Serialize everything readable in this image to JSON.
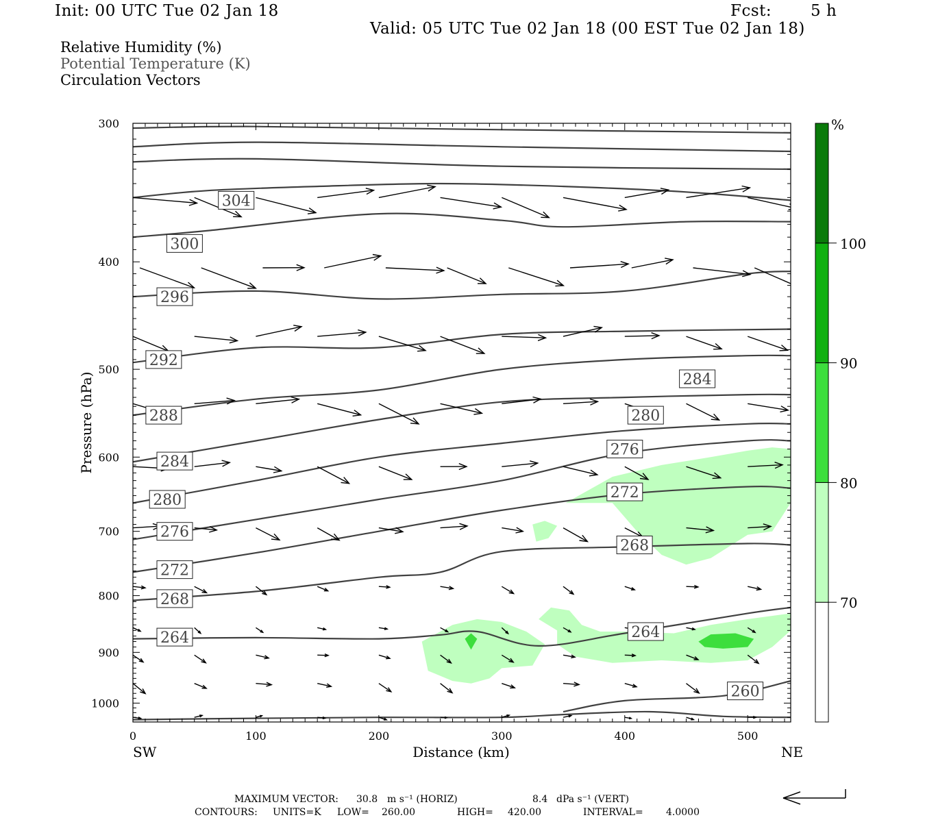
{
  "header": {
    "init": "Init: 00 UTC Tue 02 Jan 18",
    "fcst_label": "Fcst:",
    "fcst_value": "5 h",
    "valid": "Valid: 05 UTC Tue 02 Jan 18 (00 EST Tue 02 Jan 18)"
  },
  "fields": {
    "rh": "Relative Humidity (%)",
    "theta": "Potential Temperature (K)",
    "vectors": "Circulation Vectors"
  },
  "colors": {
    "shade70": "#bfffbf",
    "shade80": "#3dde3d",
    "shade90": "#10b010",
    "shade100": "#0a7a0a",
    "contour": "#404040",
    "vector": "#000000"
  },
  "chart_data": {
    "type": "cross-section",
    "xlabel": "Distance (km)",
    "ylabel": "Pressure (hPa)",
    "xlim": [
      0,
      535
    ],
    "ylim": [
      1040,
      300
    ],
    "y_scale": "log-pressure",
    "x_ticks": [
      "0",
      "100",
      "200",
      "300",
      "400",
      "500"
    ],
    "y_ticks": [
      "300",
      "400",
      "500",
      "600",
      "700",
      "800",
      "900",
      "1000"
    ],
    "x_ends": {
      "left": "SW",
      "right": "NE"
    },
    "colorbar": {
      "unit": "%",
      "levels": [
        "70",
        "80",
        "90",
        "100"
      ],
      "colors": [
        "#ffffff",
        "#bfffbf",
        "#3dde3d",
        "#10b010",
        "#0a7a0a"
      ]
    },
    "contours": [
      {
        "label": "304",
        "pts": [
          [
            0,
            350
          ],
          [
            60,
            345
          ],
          [
            150,
            342
          ],
          [
            250,
            340
          ],
          [
            350,
            342
          ],
          [
            450,
            346
          ],
          [
            535,
            352
          ]
        ],
        "lx": 84,
        "ly": 352
      },
      {
        "label": "300",
        "pts": [
          [
            0,
            380
          ],
          [
            60,
            375
          ],
          [
            200,
            362
          ],
          [
            300,
            367
          ],
          [
            350,
            372
          ],
          [
            450,
            368
          ],
          [
            535,
            368
          ]
        ],
        "lx": 42,
        "ly": 385
      },
      {
        "label": "296",
        "pts": [
          [
            0,
            430
          ],
          [
            100,
            425
          ],
          [
            200,
            432
          ],
          [
            300,
            428
          ],
          [
            400,
            425
          ],
          [
            500,
            410
          ],
          [
            535,
            408
          ]
        ],
        "lx": 34,
        "ly": 430
      },
      {
        "label": "292",
        "pts": [
          [
            0,
            493
          ],
          [
            100,
            478
          ],
          [
            200,
            478
          ],
          [
            300,
            465
          ],
          [
            400,
            462
          ],
          [
            535,
            460
          ]
        ],
        "lx": 25,
        "ly": 490
      },
      {
        "label": "288",
        "pts": [
          [
            0,
            550
          ],
          [
            100,
            532
          ],
          [
            200,
            522
          ],
          [
            300,
            500
          ],
          [
            400,
            490
          ],
          [
            500,
            486
          ],
          [
            535,
            486
          ]
        ],
        "lx": 25,
        "ly": 550
      },
      {
        "label": "284",
        "pts": [
          [
            0,
            606
          ],
          [
            100,
            580
          ],
          [
            200,
            555
          ],
          [
            300,
            535
          ],
          [
            400,
            530
          ],
          [
            500,
            527
          ],
          [
            535,
            527
          ]
        ],
        "lx": 34,
        "ly": 605,
        "lx2": 459,
        "ly2": 510
      },
      {
        "label": "280",
        "pts": [
          [
            0,
            660
          ],
          [
            100,
            630
          ],
          [
            200,
            600
          ],
          [
            300,
            583
          ],
          [
            400,
            568
          ],
          [
            500,
            560
          ],
          [
            535,
            560
          ]
        ],
        "lx": 28,
        "ly": 655,
        "lx2": 417,
        "ly2": 550
      },
      {
        "label": "276",
        "pts": [
          [
            0,
            712
          ],
          [
            100,
            683
          ],
          [
            200,
            655
          ],
          [
            300,
            630
          ],
          [
            400,
            595
          ],
          [
            500,
            580
          ],
          [
            535,
            580
          ]
        ],
        "lx": 34,
        "ly": 700,
        "lx2": 400,
        "ly2": 590
      },
      {
        "label": "272",
        "pts": [
          [
            0,
            762
          ],
          [
            100,
            732
          ],
          [
            200,
            700
          ],
          [
            300,
            670
          ],
          [
            400,
            648
          ],
          [
            500,
            638
          ],
          [
            535,
            640
          ]
        ],
        "lx": 34,
        "ly": 758,
        "lx2": 400,
        "ly2": 645
      },
      {
        "label": "268",
        "pts": [
          [
            0,
            808
          ],
          [
            100,
            793
          ],
          [
            200,
            770
          ],
          [
            250,
            762
          ],
          [
            300,
            730
          ],
          [
            400,
            723
          ],
          [
            500,
            718
          ],
          [
            535,
            720
          ]
        ],
        "lx": 34,
        "ly": 805,
        "lx2": 408,
        "ly2": 720
      },
      {
        "label": "264",
        "pts": [
          [
            0,
            875
          ],
          [
            100,
            873
          ],
          [
            200,
            875
          ],
          [
            250,
            868
          ],
          [
            280,
            862
          ],
          [
            330,
            888
          ],
          [
            400,
            865
          ],
          [
            500,
            830
          ],
          [
            535,
            820
          ]
        ],
        "lx": 34,
        "ly": 872,
        "lx2": 417,
        "ly2": 862
      },
      {
        "label": "260",
        "pts": [
          [
            350,
            1018
          ],
          [
            400,
            995
          ],
          [
            480,
            985
          ],
          [
            535,
            955
          ]
        ],
        "lx": 498,
        "ly": 975
      },
      {
        "label": "",
        "pts": [
          [
            0,
            1035
          ],
          [
            100,
            1032
          ],
          [
            200,
            1030
          ],
          [
            300,
            1030
          ],
          [
            350,
            1024
          ],
          [
            420,
            1018
          ],
          [
            480,
            1028
          ],
          [
            535,
            1030
          ]
        ]
      },
      {
        "label": "",
        "pts": [
          [
            0,
            303
          ],
          [
            100,
            302
          ],
          [
            300,
            304
          ],
          [
            535,
            306
          ]
        ]
      },
      {
        "label": "",
        "pts": [
          [
            0,
            315
          ],
          [
            100,
            312
          ],
          [
            300,
            315
          ],
          [
            535,
            318
          ]
        ]
      },
      {
        "label": "",
        "pts": [
          [
            0,
            325
          ],
          [
            100,
            323
          ],
          [
            300,
            328
          ],
          [
            535,
            330
          ]
        ]
      }
    ],
    "rh_regions": [
      {
        "level": "70",
        "pts": [
          [
            352,
            660
          ],
          [
            390,
            625
          ],
          [
            430,
            610
          ],
          [
            470,
            600
          ],
          [
            500,
            592
          ],
          [
            520,
            588
          ],
          [
            535,
            590
          ],
          [
            535,
            660
          ],
          [
            520,
            700
          ],
          [
            500,
            705
          ],
          [
            470,
            740
          ],
          [
            450,
            750
          ],
          [
            430,
            735
          ],
          [
            410,
            700
          ],
          [
            390,
            660
          ]
        ]
      },
      {
        "level": "70",
        "pts": [
          [
            325,
            690
          ],
          [
            335,
            685
          ],
          [
            345,
            692
          ],
          [
            338,
            710
          ],
          [
            328,
            715
          ]
        ]
      },
      {
        "level": "70",
        "pts": [
          [
            235,
            880
          ],
          [
            260,
            850
          ],
          [
            280,
            840
          ],
          [
            300,
            845
          ],
          [
            320,
            862
          ],
          [
            335,
            885
          ],
          [
            325,
            925
          ],
          [
            300,
            930
          ],
          [
            290,
            950
          ],
          [
            275,
            960
          ],
          [
            260,
            955
          ],
          [
            240,
            935
          ]
        ]
      },
      {
        "level": "70",
        "pts": [
          [
            330,
            840
          ],
          [
            340,
            820
          ],
          [
            355,
            825
          ],
          [
            365,
            850
          ],
          [
            380,
            862
          ],
          [
            400,
            862
          ],
          [
            440,
            865
          ],
          [
            470,
            850
          ],
          [
            500,
            840
          ],
          [
            535,
            830
          ],
          [
            535,
            860
          ],
          [
            520,
            890
          ],
          [
            500,
            915
          ],
          [
            470,
            920
          ],
          [
            430,
            915
          ],
          [
            390,
            920
          ],
          [
            360,
            908
          ],
          [
            345,
            885
          ],
          [
            345,
            860
          ]
        ]
      },
      {
        "level": "80",
        "pts": [
          [
            460,
            880
          ],
          [
            470,
            867
          ],
          [
            490,
            865
          ],
          [
            505,
            875
          ],
          [
            500,
            890
          ],
          [
            480,
            893
          ],
          [
            465,
            890
          ]
        ]
      },
      {
        "level": "80",
        "pts": [
          [
            270,
            875
          ],
          [
            275,
            865
          ],
          [
            280,
            875
          ],
          [
            275,
            895
          ]
        ]
      }
    ],
    "max_vector": {
      "label": "MAXIMUM VECTOR:",
      "horiz_value": "30.8",
      "horiz_unit": "m s⁻¹ (HORIZ)",
      "vert_value": "8.4",
      "vert_unit": "dPa s⁻¹ (VERT)"
    },
    "contour_info": {
      "prefix": "CONTOURS:",
      "units": "UNITS=K",
      "low": "LOW=",
      "low_value": "260.00",
      "high": "HIGH=",
      "high_value": "420.00",
      "interval": "INTERVAL=",
      "interval_value": "4.0000"
    }
  }
}
